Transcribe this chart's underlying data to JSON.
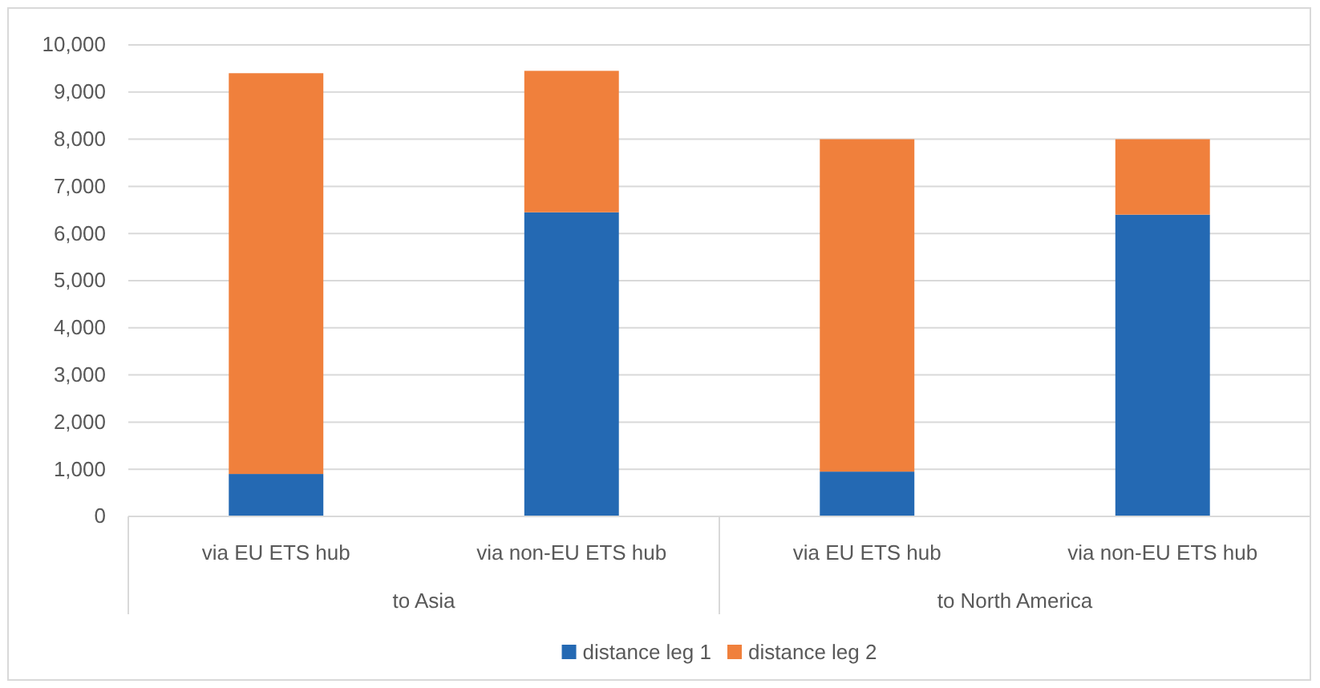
{
  "chart_data": {
    "type": "bar",
    "stacked": true,
    "categories": [
      "via EU ETS hub",
      "via non-EU ETS hub",
      "via EU ETS hub",
      "via non-EU ETS hub"
    ],
    "series": [
      {
        "name": "distance leg 1",
        "color": "#2469b3",
        "values": [
          900,
          6450,
          950,
          6400
        ]
      },
      {
        "name": "distance leg 2",
        "color": "#f0803c",
        "values": [
          8500,
          3000,
          7050,
          1600
        ]
      }
    ],
    "ylim": [
      0,
      10000
    ],
    "yticks": [
      {
        "value": 0,
        "label": "0"
      },
      {
        "value": 1000,
        "label": "1,000"
      },
      {
        "value": 2000,
        "label": "2,000"
      },
      {
        "value": 3000,
        "label": "3,000"
      },
      {
        "value": 4000,
        "label": "4,000"
      },
      {
        "value": 5000,
        "label": "5,000"
      },
      {
        "value": 6000,
        "label": "6,000"
      },
      {
        "value": 7000,
        "label": "7,000"
      },
      {
        "value": 8000,
        "label": "8,000"
      },
      {
        "value": 9000,
        "label": "9,000"
      },
      {
        "value": 10000,
        "label": "10,000"
      }
    ],
    "grid": "y",
    "legend": "bottom",
    "annotations": [
      "to Asia",
      "to North America"
    ]
  }
}
